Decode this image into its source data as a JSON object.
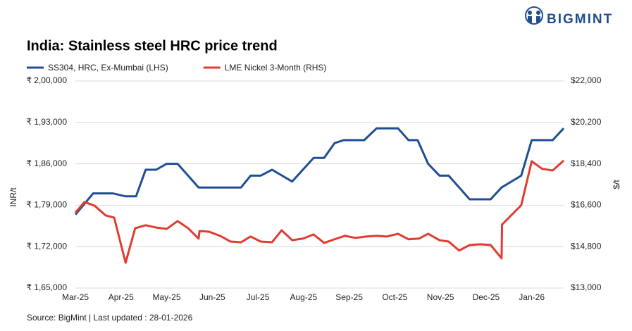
{
  "logo": "BIGMINT",
  "chart_data": {
    "type": "line",
    "title": "India: Stainless steel HRC price trend",
    "source": "Source: BigMint | Last updated : 28-01-2026",
    "ylabel": "INR/t",
    "y2label": "$/t",
    "xlim": [
      0,
      10.7
    ],
    "xticks": [
      {
        "value": 0,
        "label": "Mar-25"
      },
      {
        "value": 1,
        "label": "Apr-25"
      },
      {
        "value": 2,
        "label": "May-25"
      },
      {
        "value": 3,
        "label": "Jun-25"
      },
      {
        "value": 4,
        "label": "Jul-25"
      },
      {
        "value": 5,
        "label": "Aug-25"
      },
      {
        "value": 6,
        "label": "Sep-25"
      },
      {
        "value": 7,
        "label": "Oct-25"
      },
      {
        "value": 8,
        "label": "Nov-25"
      },
      {
        "value": 9,
        "label": "Dec-25"
      },
      {
        "value": 10,
        "label": "Jan-26"
      }
    ],
    "ylim": [
      165000,
      200000
    ],
    "yticks": [
      {
        "value": 165000,
        "label": "₹ 1,65,000"
      },
      {
        "value": 172000,
        "label": "₹ 1,72,000"
      },
      {
        "value": 179000,
        "label": "₹ 1,79,000"
      },
      {
        "value": 186000,
        "label": "₹ 1,86,000"
      },
      {
        "value": 193000,
        "label": "₹ 1,93,000"
      },
      {
        "value": 200000,
        "label": "₹ 2,00,000"
      }
    ],
    "y2lim": [
      13000,
      22000
    ],
    "y2ticks": [
      {
        "value": 13000,
        "label": "$13,000"
      },
      {
        "value": 14800,
        "label": "$14,800"
      },
      {
        "value": 16600,
        "label": "$16,600"
      },
      {
        "value": 18400,
        "label": "$18,400"
      },
      {
        "value": 20200,
        "label": "$20,200"
      },
      {
        "value": 22000,
        "label": "$22,000"
      }
    ],
    "grid": true,
    "series": [
      {
        "name": "SS304, HRC, Ex-Mumbai (LHS)",
        "color": "#1f4e96",
        "axis": "y",
        "x": [
          0,
          0.39,
          0.82,
          1.1,
          1.33,
          1.54,
          1.77,
          2.0,
          2.24,
          2.7,
          3.63,
          3.84,
          4.06,
          4.31,
          4.75,
          5.22,
          5.45,
          5.68,
          5.88,
          6.33,
          6.6,
          7.07,
          7.3,
          7.5,
          7.73,
          7.98,
          8.18,
          8.64,
          9.1,
          9.34,
          9.77,
          10.0,
          10.46,
          10.7
        ],
        "values": [
          177400,
          181000,
          181000,
          180500,
          180500,
          185000,
          185000,
          186000,
          186000,
          182000,
          182000,
          184000,
          184000,
          185000,
          183000,
          187000,
          187000,
          189500,
          190000,
          190000,
          192000,
          192000,
          190000,
          190000,
          186000,
          184000,
          184000,
          180000,
          180000,
          182000,
          184000,
          190000,
          190000,
          192000
        ]
      },
      {
        "name": "LME Nickel 3-Month (RHS)",
        "color": "#e03c31",
        "axis": "y2",
        "x": [
          0,
          0.2,
          0.42,
          0.66,
          0.85,
          1.1,
          1.31,
          1.54,
          1.77,
          2.0,
          2.24,
          2.47,
          2.7,
          2.72,
          2.93,
          3.17,
          3.4,
          3.63,
          3.84,
          4.06,
          4.31,
          4.52,
          4.75,
          4.99,
          5.22,
          5.45,
          5.68,
          5.91,
          6.14,
          6.37,
          6.6,
          6.83,
          7.07,
          7.3,
          7.53,
          7.73,
          7.98,
          8.18,
          8.41,
          8.64,
          8.87,
          9.1,
          9.34,
          9.35,
          9.77,
          10.0,
          10.23,
          10.46,
          10.7
        ],
        "values": [
          16280,
          16740,
          16580,
          16160,
          16060,
          14100,
          15600,
          15730,
          15630,
          15570,
          15910,
          15600,
          15150,
          15480,
          15450,
          15270,
          15020,
          14990,
          15240,
          15020,
          14990,
          15510,
          15080,
          15150,
          15330,
          14960,
          15120,
          15270,
          15180,
          15240,
          15270,
          15240,
          15360,
          15120,
          15150,
          15360,
          15080,
          15020,
          14630,
          14870,
          14900,
          14870,
          14290,
          15760,
          16600,
          18510,
          18180,
          18110,
          18540
        ]
      }
    ]
  }
}
